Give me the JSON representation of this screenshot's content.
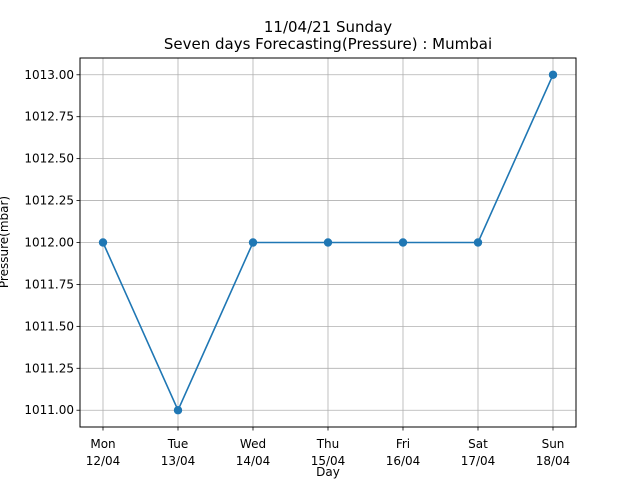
{
  "chart_data": {
    "type": "line",
    "title": "11/04/21 Sunday",
    "subtitle": "Seven days Forecasting(Pressure) : Mumbai",
    "xlabel": "Day",
    "ylabel": "Pressure(mbar)",
    "categories": [
      {
        "day": "Mon",
        "date": "12/04"
      },
      {
        "day": "Tue",
        "date": "13/04"
      },
      {
        "day": "Wed",
        "date": "14/04"
      },
      {
        "day": "Thu",
        "date": "15/04"
      },
      {
        "day": "Fri",
        "date": "16/04"
      },
      {
        "day": "Sat",
        "date": "17/04"
      },
      {
        "day": "Sun",
        "date": "18/04"
      }
    ],
    "values": [
      1012.0,
      1011.0,
      1012.0,
      1012.0,
      1012.0,
      1012.0,
      1013.0
    ],
    "yticks": [
      "1011.00",
      "1011.25",
      "1011.50",
      "1011.75",
      "1012.00",
      "1012.25",
      "1012.50",
      "1012.75",
      "1013.00"
    ],
    "ylim": [
      1010.9,
      1013.1
    ],
    "grid": true,
    "line_color": "#1f77b4",
    "marker": "circle"
  }
}
